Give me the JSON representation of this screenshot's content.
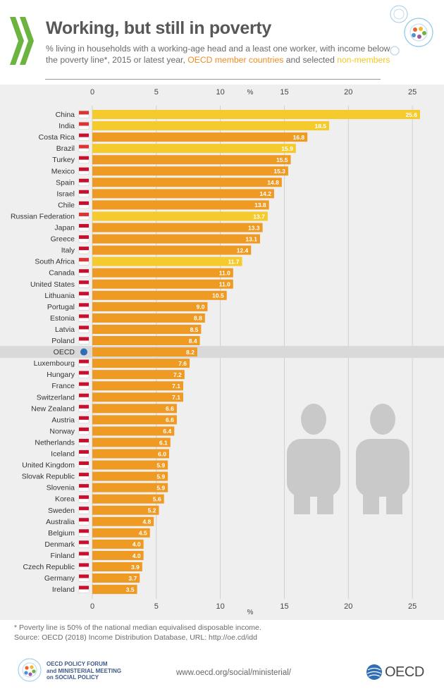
{
  "header": {
    "title": "Working, but still in poverty",
    "subtitle_main": "% living in households with a working-age head and a least one worker, with income below the poverty line*, 2015 or latest year, ",
    "subtitle_members": "OECD member countries",
    "subtitle_and": " and selected ",
    "subtitle_nonmembers": "non-members"
  },
  "colors": {
    "member": "#ef9a23",
    "nonmember": "#f5ca2c",
    "oecd_band": "#d9d9d9",
    "figure_silhouette": "#c9c9c9"
  },
  "chart_data": {
    "type": "bar",
    "orientation": "horizontal",
    "xlabel": "%",
    "xlim": [
      0,
      25.6
    ],
    "xticks": [
      0,
      5,
      10,
      15,
      20,
      25
    ],
    "grid": true,
    "categories": [
      "China",
      "India",
      "Costa Rica",
      "Brazil",
      "Turkey",
      "Mexico",
      "Spain",
      "Israel",
      "Chile",
      "Russian Federation",
      "Japan",
      "Greece",
      "Italy",
      "South Africa",
      "Canada",
      "United States",
      "Lithuania",
      "Portugal",
      "Estonia",
      "Latvia",
      "Poland",
      "OECD",
      "Luxembourg",
      "Hungary",
      "France",
      "Switzerland",
      "New Zealand",
      "Austria",
      "Norway",
      "Netherlands",
      "Iceland",
      "United Kingdom",
      "Slovak Republic",
      "Slovenia",
      "Korea",
      "Sweden",
      "Australia",
      "Belgium",
      "Denmark",
      "Finland",
      "Czech Republic",
      "Germany",
      "Ireland"
    ],
    "values": [
      25.6,
      18.5,
      16.8,
      15.9,
      15.5,
      15.3,
      14.8,
      14.2,
      13.8,
      13.7,
      13.3,
      13.1,
      12.4,
      11.7,
      11.0,
      11.0,
      10.5,
      9.0,
      8.8,
      8.5,
      8.4,
      8.2,
      7.6,
      7.2,
      7.1,
      7.1,
      6.6,
      6.6,
      6.4,
      6.1,
      6.0,
      5.9,
      5.9,
      5.9,
      5.6,
      5.2,
      4.8,
      4.5,
      4.0,
      4.0,
      3.9,
      3.7,
      3.5
    ],
    "value_labels": [
      "25.6",
      "18.5",
      "16.8",
      "15.9",
      "15.5",
      "15.3",
      "14.8",
      "14.2",
      "13.8",
      "13.7",
      "13.3",
      "13.1",
      "12.4",
      "11.7",
      "11.0",
      "11.0",
      "10.5",
      "9.0",
      "8.8",
      "8.5",
      "8.4",
      "8.2",
      "7.6",
      "7.2",
      "7.1",
      "7.1",
      "6.6",
      "6.6",
      "6.4",
      "6.1",
      "6.0",
      "5.9",
      "5.9",
      "5.9",
      "5.6",
      "5.2",
      "4.8",
      "4.5",
      "4.0",
      "4.0",
      "3.9",
      "3.7",
      "3.5"
    ],
    "group": [
      "non-member",
      "non-member",
      "member",
      "non-member",
      "member",
      "member",
      "member",
      "member",
      "member",
      "non-member",
      "member",
      "member",
      "member",
      "non-member",
      "member",
      "member",
      "member",
      "member",
      "member",
      "member",
      "member",
      "oecd",
      "member",
      "member",
      "member",
      "member",
      "member",
      "member",
      "member",
      "member",
      "member",
      "member",
      "member",
      "member",
      "member",
      "member",
      "member",
      "member",
      "member",
      "member",
      "member",
      "member",
      "member"
    ],
    "flags": [
      "china-flag",
      "india-flag",
      "costa-rica-flag",
      "brazil-flag",
      "turkey-flag",
      "mexico-flag",
      "spain-flag",
      "israel-flag",
      "chile-flag",
      "russia-flag",
      "japan-flag",
      "greece-flag",
      "italy-flag",
      "south-africa-flag",
      "canada-flag",
      "usa-flag",
      "lithuania-flag",
      "portugal-flag",
      "estonia-flag",
      "latvia-flag",
      "poland-flag",
      "oecd-logo",
      "luxembourg-flag",
      "hungary-flag",
      "france-flag",
      "switzerland-flag",
      "new-zealand-flag",
      "austria-flag",
      "norway-flag",
      "netherlands-flag",
      "iceland-flag",
      "uk-flag",
      "slovakia-flag",
      "slovenia-flag",
      "korea-flag",
      "sweden-flag",
      "australia-flag",
      "belgium-flag",
      "denmark-flag",
      "finland-flag",
      "czech-flag",
      "germany-flag",
      "ireland-flag"
    ]
  },
  "footer": {
    "note": "* Poverty line is 50% of the national median equivalised disposable income.",
    "source": "Source: OECD (2018) Income Distribution Database, URL: http://oe.cd/idd",
    "forum_line1": "OECD POLICY FORUM",
    "forum_line2": "and MINISTERIAL MEETING",
    "forum_line3": "on SOCIAL POLICY",
    "url": "www.oecd.org/social/ministerial/",
    "oecd_logo_text": "OECD"
  }
}
